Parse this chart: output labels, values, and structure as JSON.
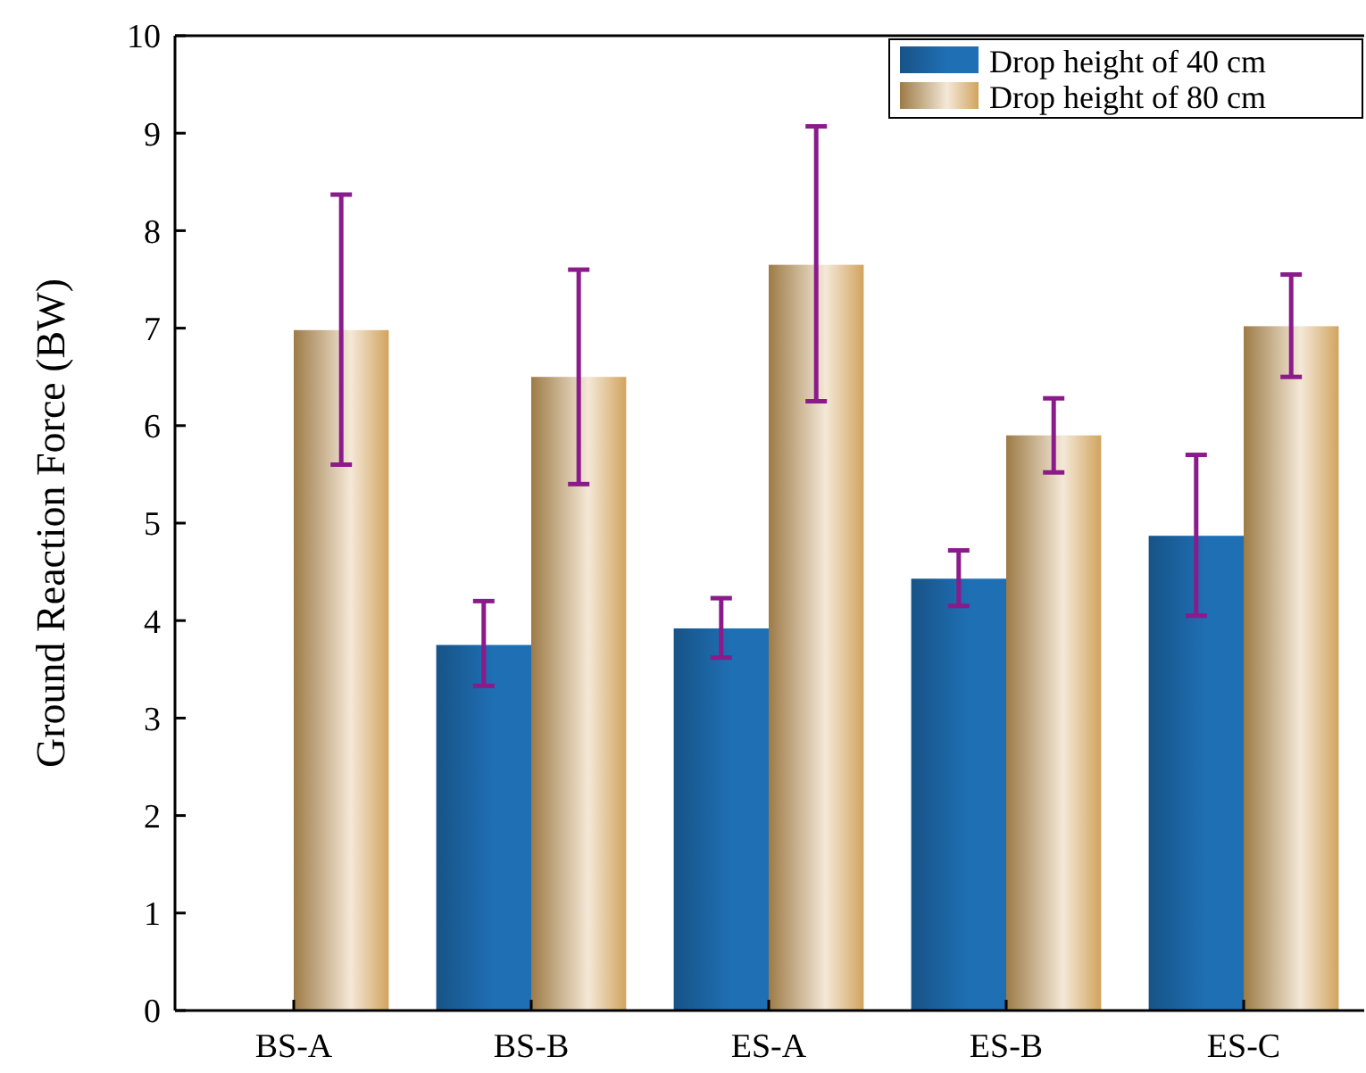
{
  "chart_data": {
    "type": "bar",
    "ylabel": "Ground Reaction Force (BW)",
    "categories": [
      "BS-A",
      "BS-B",
      "ES-A",
      "ES-B",
      "ES-C"
    ],
    "series": [
      {
        "name": "Drop height of 40 cm",
        "color": "#1f6fb4",
        "values": [
          null,
          3.75,
          3.92,
          4.43,
          4.87
        ],
        "errors": [
          null,
          [
            3.33,
            4.2
          ],
          [
            3.62,
            4.23
          ],
          [
            4.15,
            4.72
          ],
          [
            4.05,
            5.7
          ]
        ]
      },
      {
        "name": "Drop height of 80 cm",
        "color": "#d1a45e",
        "values": [
          6.98,
          6.5,
          7.65,
          5.9,
          7.02
        ],
        "errors": [
          [
            5.6,
            8.37
          ],
          [
            5.4,
            7.6
          ],
          [
            6.25,
            9.07
          ],
          [
            5.52,
            6.28
          ],
          [
            6.5,
            7.55
          ]
        ]
      }
    ],
    "ylim": [
      0,
      10
    ],
    "yticks": [
      0,
      1,
      2,
      3,
      4,
      5,
      6,
      7,
      8,
      9,
      10
    ],
    "grid": false,
    "legend": "top right"
  }
}
